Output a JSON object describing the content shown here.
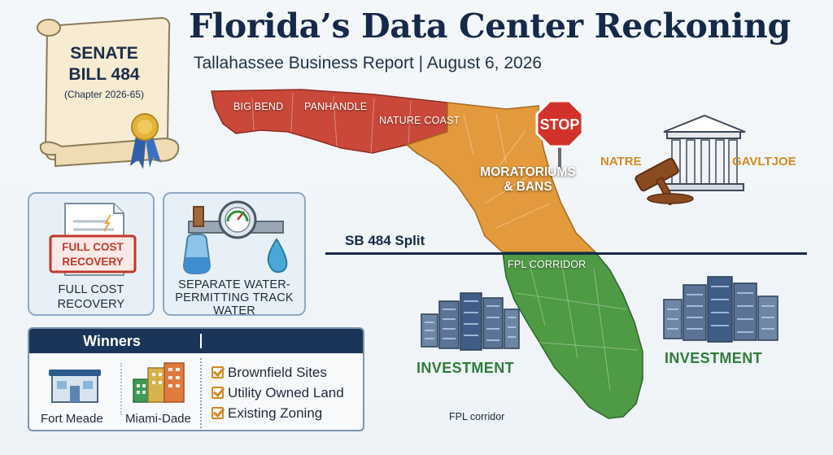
{
  "header": {
    "title": "Florida’s Data Center Reckoning",
    "subtitle": "Tallahassee Business Report | August 6, 2026"
  },
  "scroll": {
    "line1": "SENATE",
    "line2": "BILL 484",
    "line3": "(Chapter 2026-65)"
  },
  "policy_cards": [
    {
      "stamp_line1": "FULL COST",
      "stamp_line2": "RECOVERY",
      "caption_line1": "FULL COST",
      "caption_line2": "RECOVERY"
    },
    {
      "caption_line1": "SEPARATE WATER-",
      "caption_line2": "PERMITTING TRACK",
      "caption_line3": "WATER"
    }
  ],
  "winners": {
    "title": "Winners",
    "locations": [
      "Fort Meade",
      "Miami-Dade"
    ],
    "criteria": [
      "Brownfield Sites",
      "Utility Owned Land",
      "Existing Zoning"
    ]
  },
  "map": {
    "region_labels": {
      "big_bend": "BIG BEND",
      "panhandle": "PANHANDLE",
      "nature_coast": "NATURE COAST",
      "fpl_corridor": "FPL CORRIDOR"
    },
    "moratoriums_line1": "MORATORIUMS",
    "moratoriums_line2": "& BANS",
    "stop_sign": "STOP",
    "split_label": "SB 484 Split",
    "corridor_note": "FPL corridor",
    "colors": {
      "north": "#c9483a",
      "central": "#e39a3d",
      "south": "#4f9a45"
    }
  },
  "investment_labels": [
    "INVESTMENT",
    "INVESTMENT"
  ],
  "courthouse_labels": {
    "left": "NATRE",
    "right": "GAVLTJOE"
  }
}
